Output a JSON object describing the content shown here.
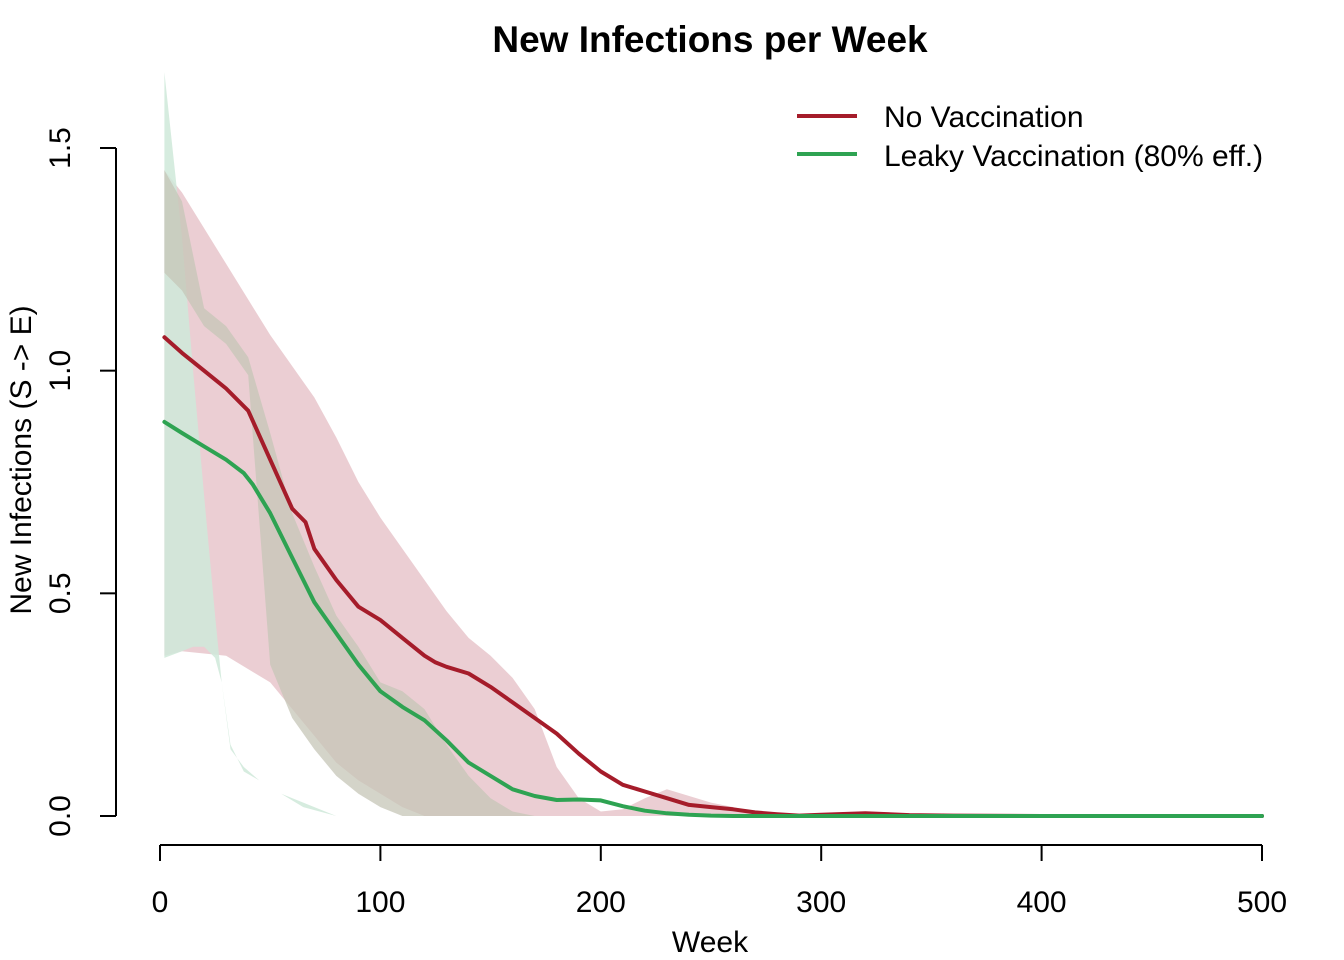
{
  "chart_data": {
    "type": "line",
    "title": "New Infections per Week",
    "xlabel": "Week",
    "ylabel": "New Infections (S -> E)",
    "xlim": [
      0,
      500
    ],
    "ylim": [
      0,
      1.5
    ],
    "x_ticks": [
      0,
      100,
      200,
      300,
      400,
      500
    ],
    "x_tick_labels": [
      "0",
      "100",
      "200",
      "300",
      "400",
      "500"
    ],
    "y_ticks": [
      0,
      0.5,
      1.0,
      1.5
    ],
    "y_tick_labels": [
      "0.0",
      "0.5",
      "1.0",
      "1.5"
    ],
    "legend_position": "top-right",
    "grid": false,
    "series": [
      {
        "name": "No Vaccination",
        "color": "#a51c2a",
        "band_color": "#e8c6cb",
        "x": [
          2,
          10,
          20,
          30,
          40,
          50,
          60,
          66,
          70,
          80,
          90,
          100,
          110,
          120,
          125,
          130,
          140,
          150,
          160,
          170,
          180,
          190,
          200,
          210,
          220,
          230,
          240,
          250,
          260,
          270,
          280,
          290,
          300,
          320,
          340,
          360,
          400,
          450,
          500
        ],
        "values": [
          1.075,
          1.04,
          1.0,
          0.96,
          0.91,
          0.8,
          0.69,
          0.66,
          0.6,
          0.53,
          0.47,
          0.44,
          0.4,
          0.36,
          0.345,
          0.335,
          0.32,
          0.29,
          0.255,
          0.22,
          0.185,
          0.14,
          0.1,
          0.07,
          0.055,
          0.04,
          0.025,
          0.02,
          0.015,
          0.008,
          0.004,
          0.001,
          0.003,
          0.006,
          0.002,
          0.001,
          0.0,
          0.0,
          0.0
        ],
        "band_x": [
          2,
          10,
          30,
          50,
          70,
          80,
          90,
          100,
          110,
          120,
          130,
          140,
          150,
          160,
          170,
          180,
          190,
          200,
          210,
          220,
          230,
          250,
          270,
          300,
          350,
          400,
          500
        ],
        "band_lower": [
          0.36,
          0.37,
          0.36,
          0.3,
          0.18,
          0.12,
          0.08,
          0.05,
          0.02,
          0.0,
          0.0,
          0.0,
          0.0,
          0.0,
          0.0,
          0.0,
          0.0,
          0.0,
          0.0,
          0.0,
          0.0,
          0.0,
          0.0,
          0.0,
          0.0,
          0.0,
          0.0
        ],
        "band_upper": [
          1.45,
          1.4,
          1.24,
          1.08,
          0.94,
          0.85,
          0.75,
          0.67,
          0.6,
          0.53,
          0.46,
          0.4,
          0.36,
          0.31,
          0.24,
          0.11,
          0.04,
          0.01,
          0.015,
          0.04,
          0.06,
          0.03,
          0.01,
          0.002,
          0.0,
          0.0,
          0.0
        ]
      },
      {
        "name": "Leaky Vaccination (80% eff.)",
        "color": "#2ea352",
        "band_color": "#cfe9d9",
        "x": [
          2,
          10,
          20,
          30,
          38,
          42,
          50,
          60,
          70,
          80,
          90,
          100,
          110,
          120,
          130,
          140,
          150,
          160,
          170,
          180,
          190,
          200,
          210,
          220,
          230,
          240,
          250,
          260,
          280,
          300,
          350,
          400,
          450,
          500
        ],
        "values": [
          0.885,
          0.86,
          0.83,
          0.8,
          0.77,
          0.745,
          0.68,
          0.58,
          0.48,
          0.41,
          0.34,
          0.28,
          0.245,
          0.215,
          0.17,
          0.12,
          0.09,
          0.06,
          0.045,
          0.036,
          0.037,
          0.035,
          0.022,
          0.012,
          0.006,
          0.003,
          0.001,
          0.0,
          0.0,
          0.0,
          0.0,
          0.0,
          0.0,
          0.0
        ],
        "band_x": [
          2,
          10,
          15,
          20,
          25,
          28,
          32,
          38,
          45,
          55,
          65,
          80,
          95,
          105,
          110,
          120,
          130,
          140,
          150,
          160,
          170,
          180,
          200,
          250,
          500
        ],
        "band_lower": [
          0.355,
          0.37,
          0.38,
          0.38,
          0.355,
          0.3,
          0.16,
          0.1,
          0.08,
          0.05,
          0.02,
          0.0,
          0.0,
          0.0,
          0.0,
          0.0,
          0.0,
          0.0,
          0.0,
          0.0,
          0.0,
          0.0,
          0.0,
          0.0,
          0.0
        ],
        "band_upper": [
          1.67,
          1.3,
          1.0,
          0.72,
          0.45,
          0.3,
          0.15,
          0.11,
          0.08,
          0.05,
          0.03,
          0.0,
          0.0,
          0.0,
          0.0,
          0.0,
          0.0,
          0.0,
          0.0,
          0.0,
          0.0,
          0.0,
          0.0,
          0.0,
          0.0
        ]
      }
    ],
    "overlap_band": {
      "description_color": "#c6c6b7",
      "x": [
        2,
        10,
        20,
        30,
        40,
        50,
        60,
        70,
        80,
        90,
        100,
        110,
        120,
        130,
        140,
        150,
        160,
        170
      ],
      "lower": [
        1.22,
        1.18,
        1.1,
        1.06,
        0.99,
        0.34,
        0.22,
        0.15,
        0.09,
        0.05,
        0.02,
        0.0,
        0.0,
        0.0,
        0.0,
        0.0,
        0.0,
        0.0
      ],
      "upper": [
        1.45,
        1.38,
        1.14,
        1.1,
        1.03,
        0.86,
        0.68,
        0.56,
        0.45,
        0.38,
        0.3,
        0.28,
        0.24,
        0.16,
        0.09,
        0.04,
        0.01,
        0.0
      ]
    }
  }
}
